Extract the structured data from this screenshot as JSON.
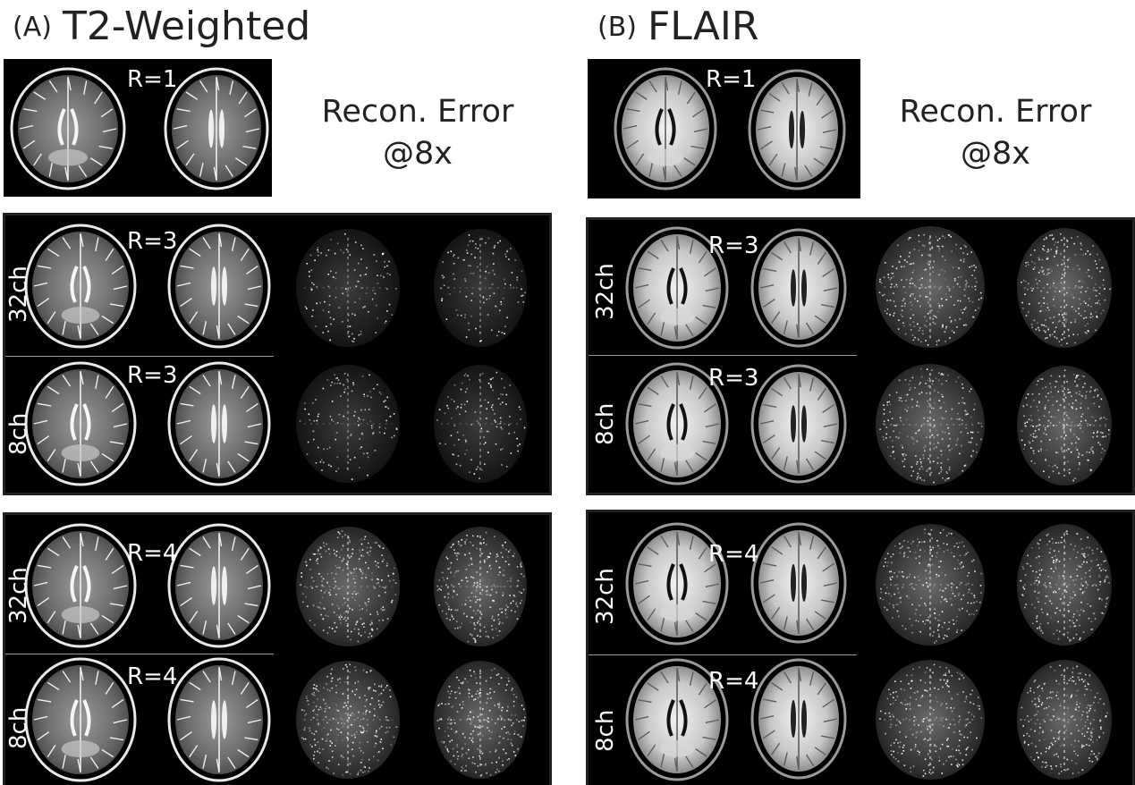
{
  "panels": [
    {
      "tag": "(A)",
      "title": "T2-Weighted",
      "reference_label": "R=1",
      "recon_error_line1": "Recon. Error",
      "recon_error_line2": "@8x",
      "groups": [
        {
          "rows": [
            {
              "channels": "32ch",
              "r_label": "R=3"
            },
            {
              "channels": "8ch",
              "r_label": "R=3"
            }
          ]
        },
        {
          "rows": [
            {
              "channels": "32ch",
              "r_label": "R=4"
            },
            {
              "channels": "8ch",
              "r_label": "R=4"
            }
          ]
        }
      ]
    },
    {
      "tag": "(B)",
      "title": "FLAIR",
      "reference_label": "R=1",
      "recon_error_line1": "Recon. Error",
      "recon_error_line2": "@8x",
      "groups": [
        {
          "rows": [
            {
              "channels": "32ch",
              "r_label": "R=3"
            },
            {
              "channels": "8ch",
              "r_label": "R=3"
            }
          ]
        },
        {
          "rows": [
            {
              "channels": "32ch",
              "r_label": "R=4"
            },
            {
              "channels": "8ch",
              "r_label": "R=4"
            }
          ]
        }
      ]
    }
  ]
}
